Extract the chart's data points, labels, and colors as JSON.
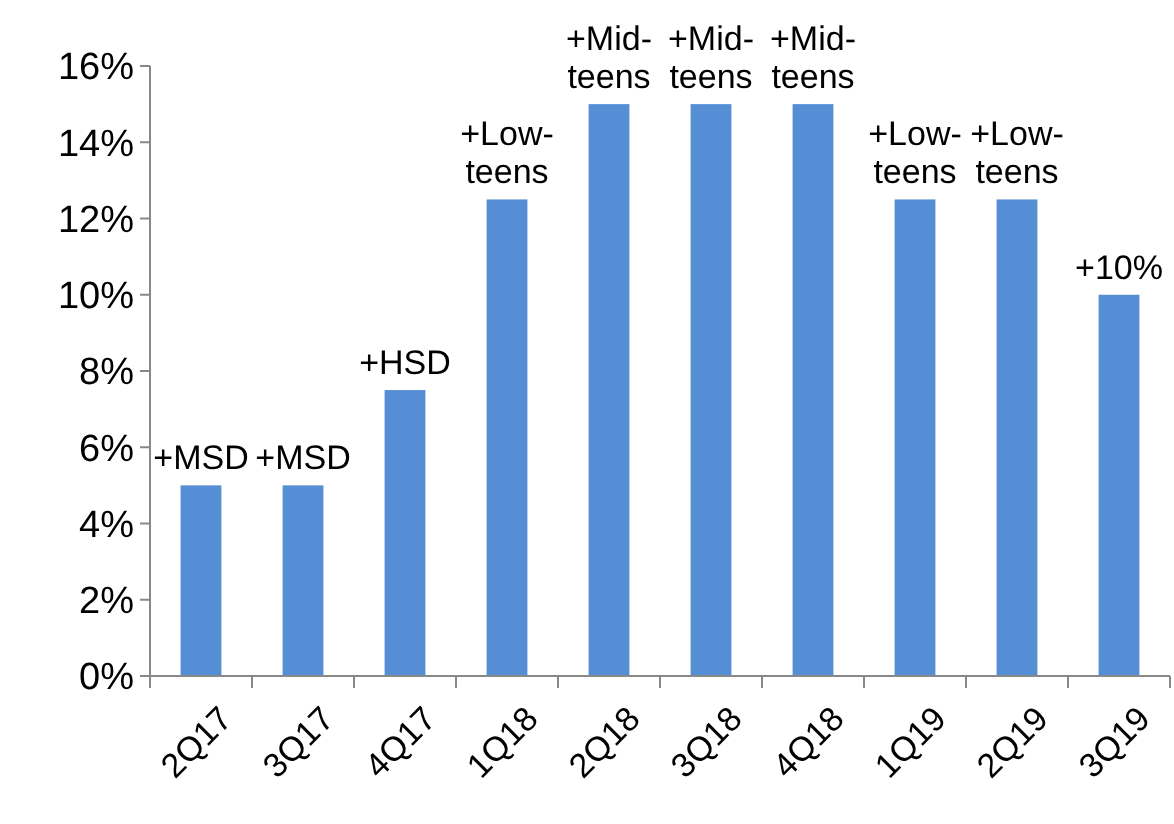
{
  "chart_data": {
    "type": "bar",
    "categories": [
      "2Q17",
      "3Q17",
      "4Q17",
      "1Q18",
      "2Q18",
      "3Q18",
      "4Q18",
      "1Q19",
      "2Q19",
      "3Q19"
    ],
    "values": [
      5,
      5,
      7.5,
      12.5,
      15,
      15,
      15,
      12.5,
      12.5,
      10
    ],
    "value_labels": [
      "+MSD",
      "+MSD",
      "+HSD",
      "+Low-\nteens",
      "+Mid-\nteens",
      "+Mid-\nteens",
      "+Mid-\nteens",
      "+Low-\nteens",
      "+Low-\nteens",
      "+10%"
    ],
    "color": "#558ed5",
    "ylim": [
      0,
      16
    ],
    "yticks": [
      {
        "value": 0,
        "label": "0%"
      },
      {
        "value": 2,
        "label": "2%"
      },
      {
        "value": 4,
        "label": "4%"
      },
      {
        "value": 6,
        "label": "6%"
      },
      {
        "value": 8,
        "label": "8%"
      },
      {
        "value": 10,
        "label": "10%"
      },
      {
        "value": 12,
        "label": "12%"
      },
      {
        "value": 14,
        "label": "14%"
      },
      {
        "value": 16,
        "label": "16%"
      }
    ]
  }
}
